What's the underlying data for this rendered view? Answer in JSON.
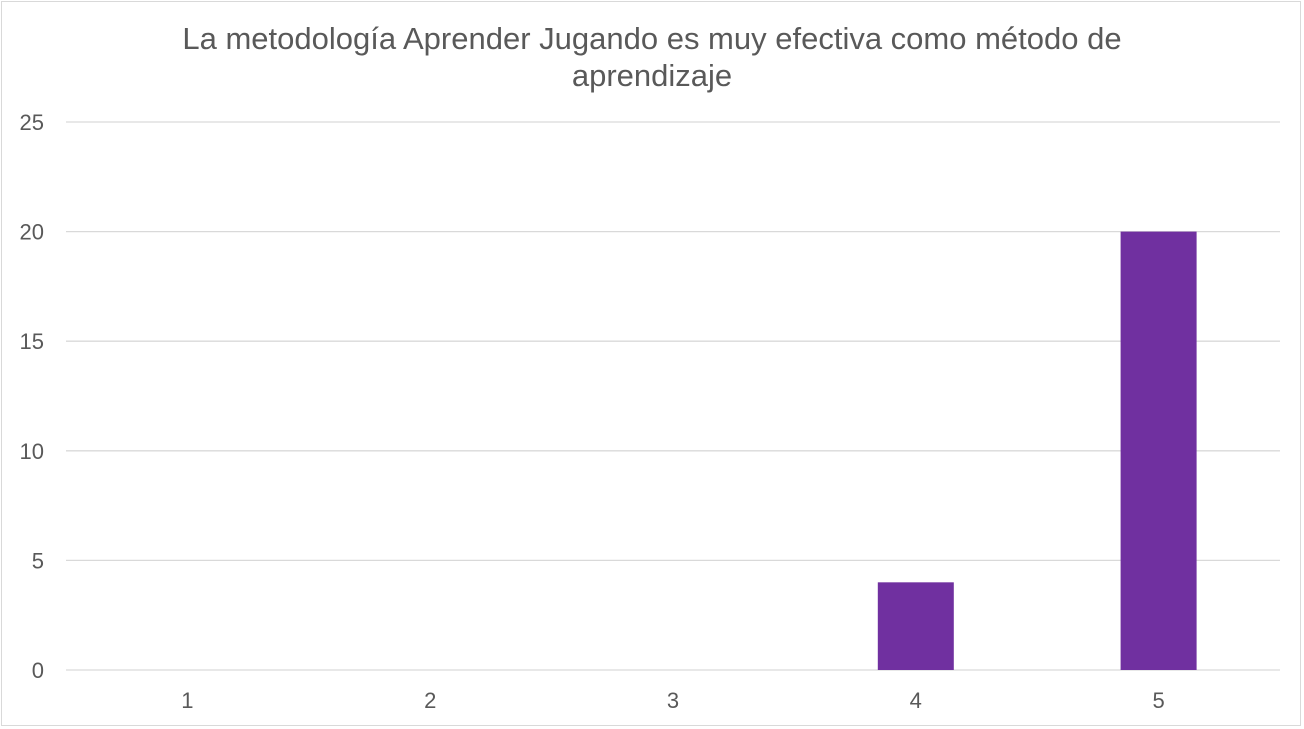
{
  "chart_data": {
    "type": "bar",
    "title_lines": [
      "La metodología Aprender Jugando es muy efectiva como método de",
      "aprendizaje"
    ],
    "xlabel": "",
    "ylabel": "",
    "categories": [
      "1",
      "2",
      "3",
      "4",
      "5"
    ],
    "values": [
      0,
      0,
      0,
      4,
      20
    ],
    "ylim": [
      0,
      25
    ],
    "yticks": [
      0,
      5,
      10,
      15,
      20,
      25
    ],
    "grid": true,
    "legend": "none",
    "colors": {
      "bar": "#7030a0",
      "grid": "#d9d9d9",
      "text": "#595959"
    }
  }
}
